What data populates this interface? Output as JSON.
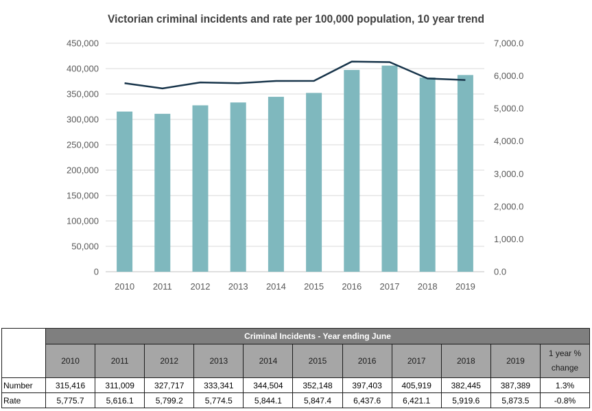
{
  "chart_data": {
    "type": "bar",
    "title": "Victorian criminal incidents and rate per 100,000 population, 10 year trend",
    "categories": [
      "2010",
      "2011",
      "2012",
      "2013",
      "2014",
      "2015",
      "2016",
      "2017",
      "2018",
      "2019"
    ],
    "series": [
      {
        "type": "bar",
        "axis": "left",
        "values": [
          315416,
          311009,
          327717,
          333341,
          344504,
          352148,
          397403,
          405919,
          382445,
          387389
        ],
        "color": "#7fb8be"
      },
      {
        "type": "line",
        "axis": "right",
        "values": [
          5775.7,
          5616.1,
          5799.2,
          5774.5,
          5844.1,
          5847.4,
          6437.6,
          6421.1,
          5919.6,
          5873.5
        ],
        "color": "#17344a"
      }
    ],
    "ylim_left": [
      0,
      450000
    ],
    "ylim_right": [
      0,
      7000
    ],
    "yticks_left": [
      "0",
      "50,000",
      "100,000",
      "150,000",
      "200,000",
      "250,000",
      "300,000",
      "350,000",
      "400,000",
      "450,000"
    ],
    "yticks_right": [
      "0.0",
      "1,000.0",
      "2,000.0",
      "3,000.0",
      "4,000.0",
      "5,000.0",
      "6,000.0",
      "7,000.0"
    ],
    "grid": true,
    "legend": "none"
  },
  "table": {
    "header": "Criminal Incidents - Year ending June",
    "years": [
      "2010",
      "2011",
      "2012",
      "2013",
      "2014",
      "2015",
      "2016",
      "2017",
      "2018",
      "2019"
    ],
    "change_header": "1 year % change",
    "rows": [
      {
        "label": "Number",
        "values": [
          "315,416",
          "311,009",
          "327,717",
          "333,341",
          "344,504",
          "352,148",
          "397,403",
          "405,919",
          "382,445",
          "387,389"
        ],
        "change": "1.3%"
      },
      {
        "label": "Rate",
        "values": [
          "5,775.7",
          "5,616.1",
          "5,799.2",
          "5,774.5",
          "5,844.1",
          "5,847.4",
          "6,437.6",
          "6,421.1",
          "5,919.6",
          "5,873.5"
        ],
        "change": "-0.8%"
      }
    ]
  }
}
